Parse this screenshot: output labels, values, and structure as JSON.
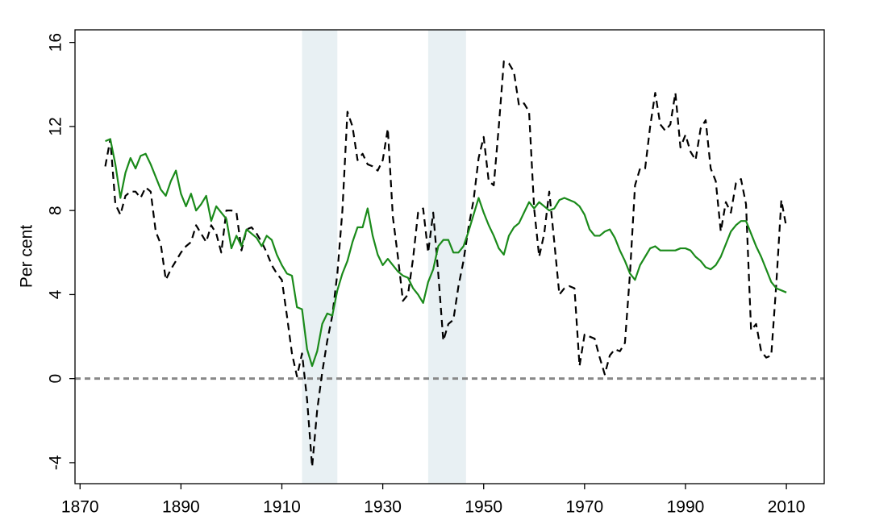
{
  "chart_data": {
    "type": "line",
    "ylabel": "Per cent",
    "x": [
      1875,
      1876,
      1877,
      1878,
      1879,
      1880,
      1881,
      1882,
      1883,
      1884,
      1885,
      1886,
      1887,
      1888,
      1889,
      1890,
      1891,
      1892,
      1893,
      1894,
      1895,
      1896,
      1897,
      1898,
      1899,
      1900,
      1901,
      1902,
      1903,
      1904,
      1905,
      1906,
      1907,
      1908,
      1909,
      1910,
      1911,
      1912,
      1913,
      1914,
      1915,
      1916,
      1917,
      1918,
      1919,
      1920,
      1921,
      1922,
      1923,
      1924,
      1925,
      1926,
      1927,
      1928,
      1929,
      1930,
      1931,
      1932,
      1933,
      1934,
      1935,
      1936,
      1937,
      1938,
      1939,
      1940,
      1941,
      1942,
      1943,
      1944,
      1945,
      1946,
      1947,
      1948,
      1949,
      1950,
      1951,
      1952,
      1953,
      1954,
      1955,
      1956,
      1957,
      1958,
      1959,
      1960,
      1961,
      1962,
      1963,
      1964,
      1965,
      1966,
      1967,
      1968,
      1969,
      1970,
      1971,
      1972,
      1973,
      1974,
      1975,
      1976,
      1977,
      1978,
      1979,
      1980,
      1981,
      1982,
      1983,
      1984,
      1985,
      1986,
      1987,
      1988,
      1989,
      1990,
      1991,
      1992,
      1993,
      1994,
      1995,
      1996,
      1997,
      1998,
      1999,
      2000,
      2001,
      2002,
      2003,
      2004,
      2005,
      2006,
      2007,
      2008,
      2009,
      2010
    ],
    "series": [
      {
        "color": "#000000",
        "line_style": "dashed",
        "values": [
          10.1,
          11.4,
          8.3,
          7.8,
          8.7,
          8.9,
          8.9,
          8.6,
          9.1,
          8.9,
          7.0,
          6.4,
          4.7,
          5.2,
          5.6,
          6.0,
          6.3,
          6.5,
          7.3,
          6.9,
          6.5,
          7.3,
          6.9,
          6.0,
          8.0,
          8.0,
          7.9,
          6.1,
          7.1,
          7.2,
          6.9,
          6.5,
          6.0,
          5.4,
          5.0,
          4.7,
          3.0,
          1.2,
          0.1,
          1.2,
          -1.0,
          -4.2,
          -1.5,
          0.3,
          1.8,
          3.0,
          5.0,
          8.0,
          12.7,
          12.0,
          10.4,
          10.7,
          10.2,
          10.1,
          9.9,
          10.4,
          11.9,
          7.7,
          5.8,
          3.7,
          4.0,
          5.7,
          7.9,
          8.1,
          6.0,
          7.9,
          5.0,
          1.8,
          2.6,
          2.8,
          4.4,
          5.6,
          7.2,
          8.5,
          10.5,
          11.5,
          9.4,
          9.2,
          12.0,
          15.1,
          15.0,
          14.6,
          13.0,
          13.1,
          12.7,
          8.1,
          5.8,
          6.9,
          8.9,
          6.5,
          4.0,
          4.3,
          4.4,
          4.3,
          0.6,
          2.1,
          2.0,
          1.9,
          1.0,
          0.2,
          1.1,
          1.4,
          1.3,
          1.7,
          5.0,
          9.2,
          10.0,
          10.0,
          12.0,
          13.6,
          12.1,
          11.8,
          12.1,
          13.6,
          11.0,
          11.6,
          10.8,
          10.4,
          11.9,
          12.3,
          10.0,
          9.4,
          7.0,
          8.4,
          7.9,
          9.3,
          9.5,
          8.3,
          2.3,
          2.6,
          1.3,
          1.0,
          1.1,
          4.5,
          8.5,
          7.2
        ]
      },
      {
        "color": "#1a8a1a",
        "line_style": "solid",
        "values": [
          11.3,
          11.4,
          10.2,
          8.6,
          9.8,
          10.5,
          10.0,
          10.6,
          10.7,
          10.2,
          9.6,
          9.0,
          8.7,
          9.4,
          9.9,
          8.8,
          8.2,
          8.8,
          8.0,
          8.3,
          8.7,
          7.5,
          8.2,
          7.9,
          7.6,
          6.2,
          6.8,
          6.3,
          7.1,
          6.9,
          6.7,
          6.3,
          6.8,
          6.6,
          5.9,
          5.4,
          5.0,
          4.9,
          3.4,
          3.3,
          1.4,
          0.6,
          1.3,
          2.6,
          3.1,
          3.0,
          4.2,
          5.0,
          5.6,
          6.5,
          7.2,
          7.2,
          8.1,
          6.8,
          5.9,
          5.4,
          5.7,
          5.4,
          5.1,
          4.9,
          4.8,
          4.3,
          4.0,
          3.6,
          4.6,
          5.2,
          6.3,
          6.6,
          6.6,
          6.0,
          6.0,
          6.3,
          7.0,
          7.8,
          8.6,
          7.9,
          7.3,
          6.8,
          6.2,
          5.9,
          6.8,
          7.2,
          7.4,
          7.9,
          8.4,
          8.1,
          8.4,
          8.2,
          8.0,
          8.1,
          8.5,
          8.6,
          8.5,
          8.4,
          8.2,
          7.8,
          7.1,
          6.8,
          6.8,
          7.0,
          7.1,
          6.7,
          6.1,
          5.6,
          5.0,
          4.7,
          5.4,
          5.8,
          6.2,
          6.3,
          6.1,
          6.1,
          6.1,
          6.1,
          6.2,
          6.2,
          6.1,
          5.8,
          5.6,
          5.3,
          5.2,
          5.4,
          5.8,
          6.4,
          7.0,
          7.3,
          7.5,
          7.5,
          6.9,
          6.3,
          5.8,
          5.2,
          4.6,
          4.3,
          4.2,
          4.1
        ]
      }
    ],
    "shaded_regions": [
      [
        1914,
        1921
      ],
      [
        1939,
        1946.5
      ]
    ],
    "shade_color": "#e8f0f3",
    "reference_line": 0,
    "xlim": [
      1869,
      2017.5
    ],
    "xticks": [
      1870,
      1890,
      1910,
      1930,
      1950,
      1970,
      1990,
      2010
    ],
    "ylim": [
      -5,
      16.6
    ],
    "yticks": [
      -4,
      0,
      4,
      8,
      12,
      16
    ]
  }
}
